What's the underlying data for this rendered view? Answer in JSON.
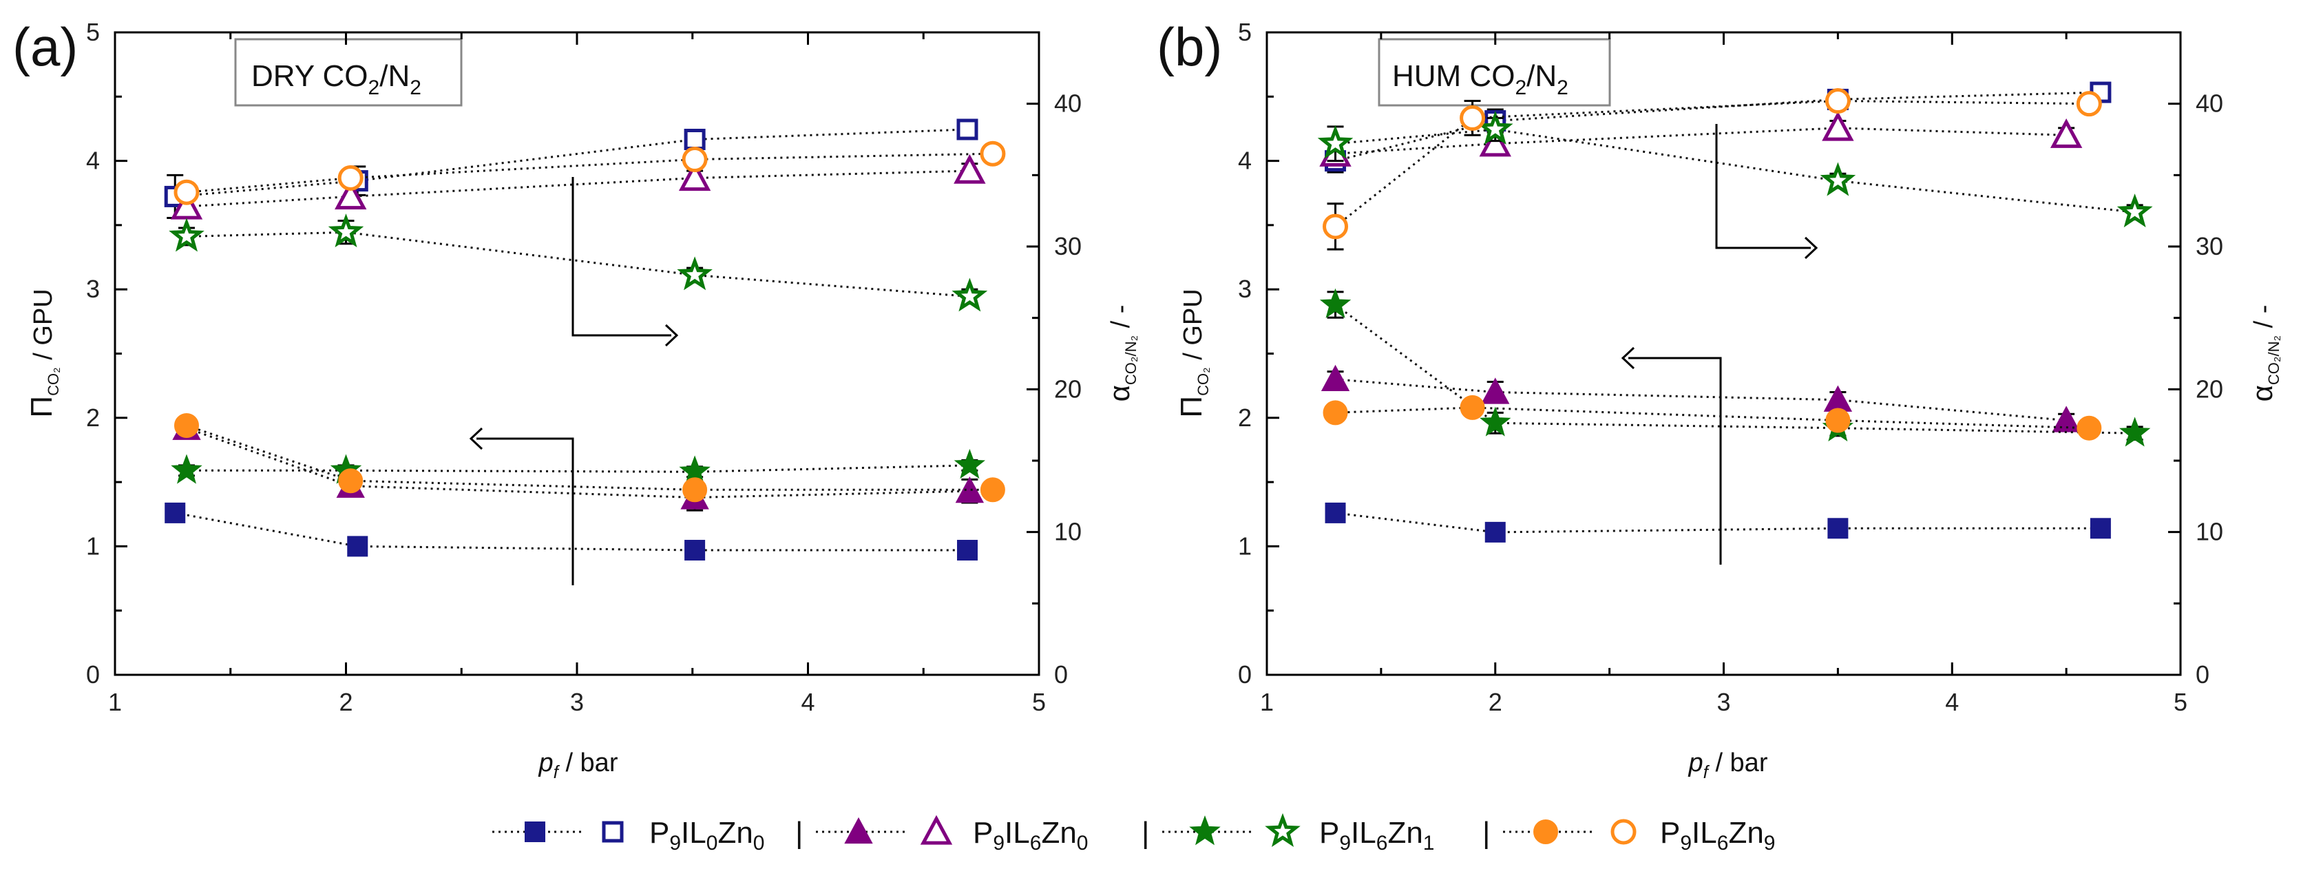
{
  "figure": {
    "panel_labels": [
      "(a)",
      "(b)"
    ],
    "conditions": [
      {
        "prefix": "DRY CO",
        "sub1": "2",
        "mid": "/N",
        "sub2": "2"
      },
      {
        "prefix": "HUM CO",
        "sub1": "2",
        "mid": "/N",
        "sub2": "2"
      }
    ],
    "y_left_label": {
      "symbol": "Π",
      "sub": "CO₂",
      "unit": "/ GPU"
    },
    "y_right_label": {
      "symbol": "α",
      "sub": "CO₂/N₂",
      "unit": "/ -"
    },
    "x_label": {
      "symbol": "p",
      "sub": "f",
      "unit": "/ bar"
    },
    "legend_separator": "|",
    "legend": [
      {
        "base": "P",
        "sub_a": "9",
        "mid": "IL",
        "sub_b": "0",
        "tail": "Zn",
        "sub_c": "0",
        "color": "#1a1a8c",
        "marker": "square"
      },
      {
        "base": "P",
        "sub_a": "9",
        "mid": "IL",
        "sub_b": "6",
        "tail": "Zn",
        "sub_c": "0",
        "color": "#800080",
        "marker": "triangle"
      },
      {
        "base": "P",
        "sub_a": "9",
        "mid": "IL",
        "sub_b": "6",
        "tail": "Zn",
        "sub_c": "1",
        "color": "#0a7a0a",
        "marker": "star"
      },
      {
        "base": "P",
        "sub_a": "9",
        "mid": "IL",
        "sub_b": "6",
        "tail": "Zn",
        "sub_c": "9",
        "color": "#ff8c1a",
        "marker": "circle"
      }
    ]
  },
  "chart_data": [
    {
      "type": "scatter",
      "panel": "(a)",
      "title": "DRY CO2/N2",
      "xlabel": "p_f / bar",
      "ylabel": "Π_CO2 / GPU",
      "y2label": "α_CO2/N2 / -",
      "xlim": [
        1,
        5
      ],
      "ylim": [
        0,
        5
      ],
      "y2lim": [
        0,
        45
      ],
      "xticks": [
        1,
        2,
        3,
        4,
        5
      ],
      "yticks": [
        0,
        1,
        2,
        3,
        4,
        5
      ],
      "y2ticks": [
        0,
        10,
        20,
        30,
        40
      ],
      "annotations": [
        {
          "type": "arrow-left",
          "points_to": "left axis (permeance)"
        },
        {
          "type": "arrow-right",
          "points_to": "right axis (selectivity)"
        }
      ],
      "series": [
        {
          "name": "P9IL0Zn0 permeance",
          "axis": "left",
          "marker": "square",
          "filled": true,
          "color": "#1a1a8c",
          "x": [
            1.26,
            2.05,
            3.51,
            4.69
          ],
          "y": [
            1.26,
            1.0,
            0.97,
            0.97
          ],
          "err": [
            0.03,
            0.02,
            0.02,
            0.02
          ]
        },
        {
          "name": "P9IL6Zn0 permeance",
          "axis": "left",
          "marker": "triangle",
          "filled": true,
          "color": "#800080",
          "x": [
            1.31,
            2.02,
            3.51,
            4.7
          ],
          "y": [
            1.92,
            1.47,
            1.38,
            1.43
          ],
          "err": [
            0.05,
            0.07,
            0.1,
            0.09
          ]
        },
        {
          "name": "P9IL6Zn1 permeance",
          "axis": "left",
          "marker": "star",
          "filled": true,
          "color": "#0a7a0a",
          "x": [
            1.31,
            2.0,
            3.51,
            4.7
          ],
          "y": [
            1.59,
            1.59,
            1.58,
            1.63
          ],
          "err": [
            0.04,
            0.04,
            0.04,
            0.04
          ]
        },
        {
          "name": "P9IL6Zn9 permeance",
          "axis": "left",
          "marker": "circle",
          "filled": true,
          "color": "#ff8c1a",
          "x": [
            1.31,
            2.02,
            3.51,
            4.8
          ],
          "y": [
            1.94,
            1.51,
            1.44,
            1.44
          ],
          "err": [
            0.03,
            0.03,
            0.03,
            0.03
          ]
        },
        {
          "name": "P9IL0Zn0 selectivity",
          "axis": "right",
          "marker": "square",
          "filled": false,
          "color": "#1a1a8c",
          "x": [
            1.26,
            2.05,
            3.51,
            4.69
          ],
          "y": [
            33.5,
            34.6,
            37.5,
            38.2
          ],
          "err": [
            1.5,
            1.0,
            0.5,
            0.5
          ]
        },
        {
          "name": "P9IL6Zn0 selectivity",
          "axis": "right",
          "marker": "triangle",
          "filled": false,
          "color": "#800080",
          "x": [
            1.31,
            2.02,
            3.51,
            4.7
          ],
          "y": [
            32.8,
            33.5,
            34.8,
            35.3
          ],
          "err": [
            0.6,
            0.8,
            0.5,
            0.5
          ]
        },
        {
          "name": "P9IL6Zn1 selectivity",
          "axis": "right",
          "marker": "star",
          "filled": false,
          "color": "#0a7a0a",
          "x": [
            1.31,
            2.0,
            3.51,
            4.7
          ],
          "y": [
            30.7,
            31.0,
            28.0,
            26.5
          ],
          "err": [
            0.6,
            0.8,
            0.5,
            0.5
          ]
        },
        {
          "name": "P9IL6Zn9 selectivity",
          "axis": "right",
          "marker": "circle",
          "filled": false,
          "color": "#ff8c1a",
          "x": [
            1.31,
            2.02,
            3.51,
            4.8
          ],
          "y": [
            33.8,
            34.8,
            36.1,
            36.5
          ],
          "err": [
            0.5,
            0.6,
            0.5,
            0.5
          ]
        }
      ]
    },
    {
      "type": "scatter",
      "panel": "(b)",
      "title": "HUM CO2/N2",
      "xlabel": "p_f / bar",
      "ylabel": "Π_CO2 / GPU",
      "y2label": "α_CO2/N2 / -",
      "xlim": [
        1,
        5
      ],
      "ylim": [
        0,
        5
      ],
      "y2lim": [
        0,
        45
      ],
      "xticks": [
        1,
        2,
        3,
        4,
        5
      ],
      "yticks": [
        0,
        1,
        2,
        3,
        4,
        5
      ],
      "y2ticks": [
        0,
        10,
        20,
        30,
        40
      ],
      "annotations": [
        {
          "type": "arrow-left",
          "points_to": "left axis (permeance)"
        },
        {
          "type": "arrow-right",
          "points_to": "right axis (selectivity)"
        }
      ],
      "series": [
        {
          "name": "P9IL0Zn0 permeance",
          "axis": "left",
          "marker": "square",
          "filled": true,
          "color": "#1a1a8c",
          "x": [
            1.3,
            2.0,
            3.5,
            4.65
          ],
          "y": [
            1.26,
            1.11,
            1.14,
            1.14
          ],
          "err": [
            0.03,
            0.03,
            0.03,
            0.03
          ]
        },
        {
          "name": "P9IL6Zn0 permeance",
          "axis": "left",
          "marker": "triangle",
          "filled": true,
          "color": "#800080",
          "x": [
            1.3,
            2.0,
            3.5,
            4.5
          ],
          "y": [
            2.3,
            2.2,
            2.14,
            1.98
          ],
          "err": [
            0.06,
            0.08,
            0.06,
            0.05
          ]
        },
        {
          "name": "P9IL6Zn1 permeance",
          "axis": "left",
          "marker": "star",
          "filled": true,
          "color": "#0a7a0a",
          "x": [
            1.3,
            2.0,
            3.5,
            4.8
          ],
          "y": [
            2.88,
            1.96,
            1.92,
            1.88
          ],
          "err": [
            0.1,
            0.08,
            0.06,
            0.05
          ]
        },
        {
          "name": "P9IL6Zn9 permeance",
          "axis": "left",
          "marker": "circle",
          "filled": true,
          "color": "#ff8c1a",
          "x": [
            1.3,
            1.9,
            3.5,
            4.6
          ],
          "y": [
            2.04,
            2.08,
            1.98,
            1.92
          ],
          "err": [
            0.04,
            0.04,
            0.04,
            0.04
          ]
        },
        {
          "name": "P9IL0Zn0 selectivity",
          "axis": "right",
          "marker": "square",
          "filled": false,
          "color": "#1a1a8c",
          "x": [
            1.3,
            2.0,
            3.5,
            4.65
          ],
          "y": [
            36.0,
            38.8,
            40.3,
            40.8
          ],
          "err": [
            0.8,
            0.8,
            0.5,
            0.5
          ]
        },
        {
          "name": "P9IL6Zn0 selectivity",
          "axis": "right",
          "marker": "triangle",
          "filled": false,
          "color": "#800080",
          "x": [
            1.3,
            2.0,
            3.5,
            4.5
          ],
          "y": [
            36.5,
            37.2,
            38.3,
            37.8
          ],
          "err": [
            0.8,
            0.8,
            0.5,
            0.5
          ]
        },
        {
          "name": "P9IL6Zn1 selectivity",
          "axis": "right",
          "marker": "star",
          "filled": false,
          "color": "#0a7a0a",
          "x": [
            1.3,
            2.0,
            3.5,
            4.8
          ],
          "y": [
            37.2,
            38.2,
            34.6,
            32.4
          ],
          "err": [
            1.2,
            0.8,
            0.5,
            0.5
          ]
        },
        {
          "name": "P9IL6Zn9 selectivity",
          "axis": "right",
          "marker": "circle",
          "filled": false,
          "color": "#ff8c1a",
          "x": [
            1.3,
            1.9,
            3.5,
            4.6
          ],
          "y": [
            31.4,
            39.0,
            40.2,
            40.0
          ],
          "err": [
            1.6,
            1.2,
            0.5,
            0.5
          ]
        }
      ]
    }
  ]
}
